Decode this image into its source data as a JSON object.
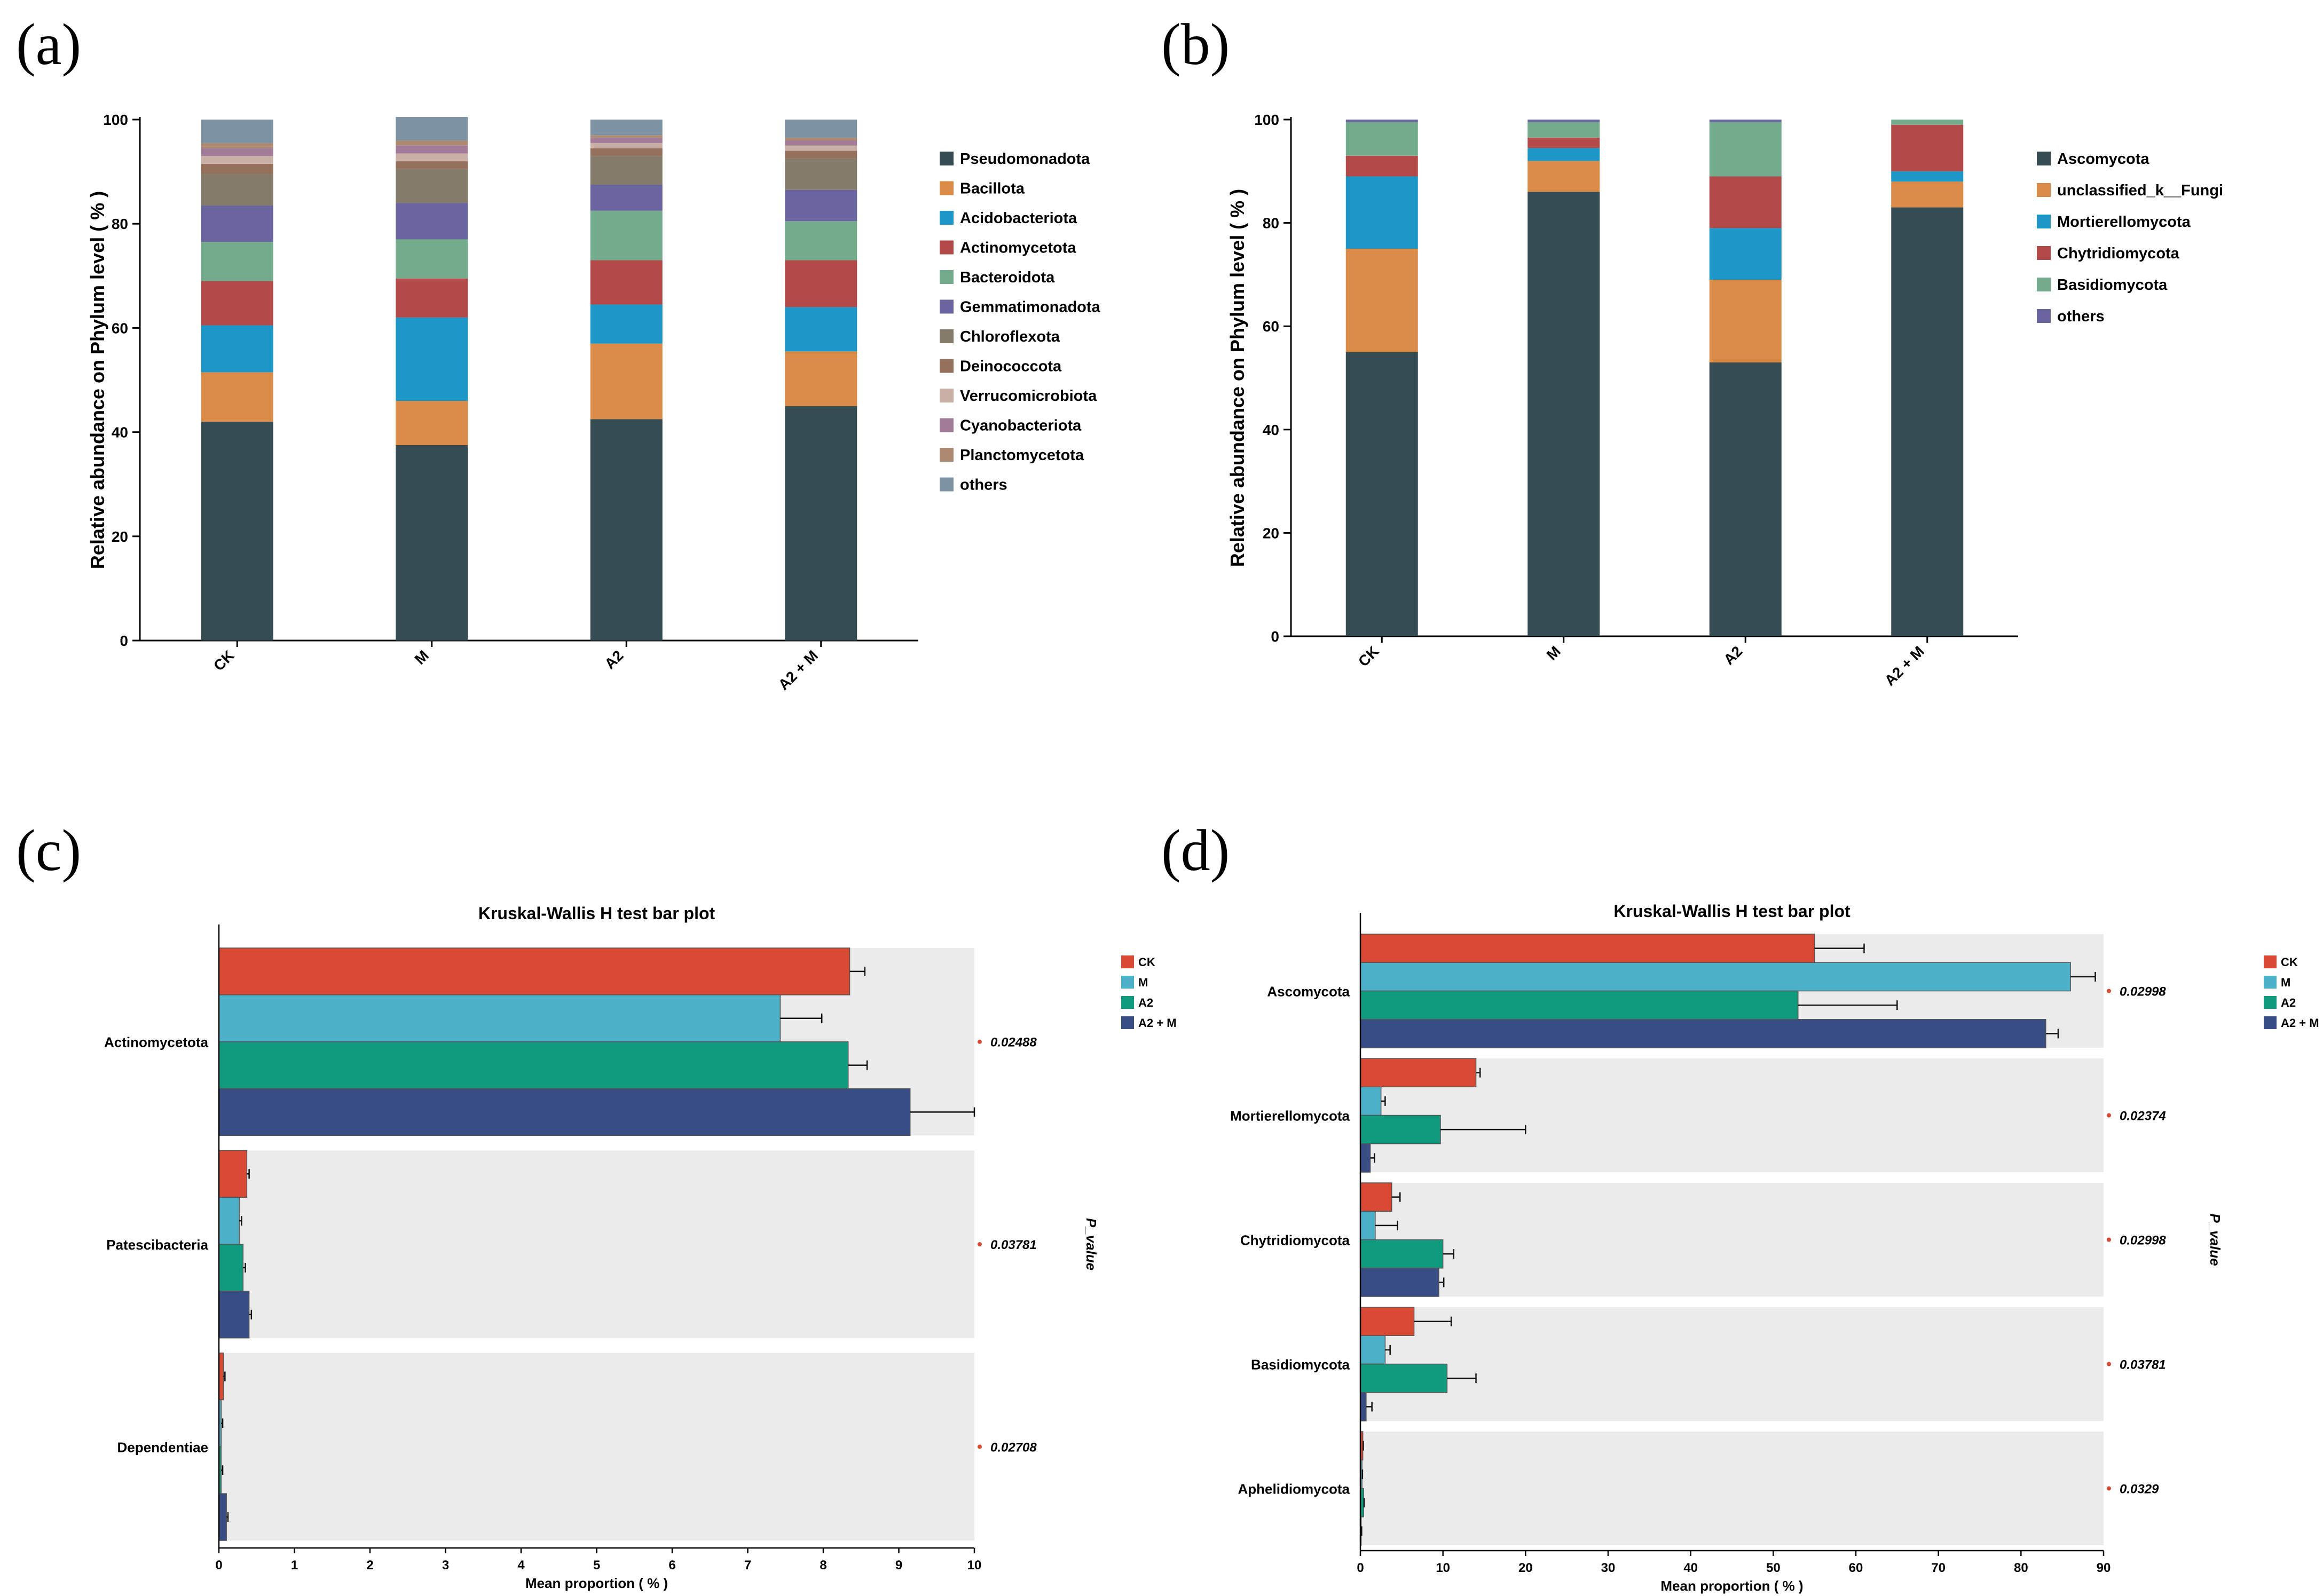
{
  "panel_labels": [
    "(a)",
    "(b)",
    "(c)",
    "(d)"
  ],
  "chart_data": [
    {
      "panel": "(a)",
      "type": "stacked-bar",
      "ylabel": "Relative abundance on Phylum level ( % )",
      "xlabel": "",
      "ylim": [
        0,
        100
      ],
      "yticks": [
        "0",
        "20",
        "40",
        "60",
        "80",
        "100"
      ],
      "categories": [
        "CK",
        "M",
        "A2",
        "A2 + M"
      ],
      "series": [
        {
          "name": "Pseudomonadota",
          "color": "#354c52",
          "values": [
            42,
            37.5,
            42.5,
            45
          ]
        },
        {
          "name": "Bacillota",
          "color": "#d98b47",
          "values": [
            9.5,
            8.5,
            14.5,
            10.5
          ]
        },
        {
          "name": "Acidobacteriota",
          "color": "#1d96c8",
          "values": [
            9,
            16,
            7.5,
            8.5
          ]
        },
        {
          "name": "Actinomycetota",
          "color": "#b34a4a",
          "values": [
            8.5,
            7.5,
            8.5,
            9
          ]
        },
        {
          "name": "Bacteroidota",
          "color": "#73ac8d",
          "values": [
            7.5,
            7.5,
            9.5,
            7.5
          ]
        },
        {
          "name": "Gemmatimonadota",
          "color": "#6a659e",
          "values": [
            7,
            7,
            5,
            6
          ]
        },
        {
          "name": "Chloroflexota",
          "color": "#857b6b",
          "values": [
            6,
            6.5,
            5.5,
            6
          ]
        },
        {
          "name": "Deinococcota",
          "color": "#94705d",
          "values": [
            2,
            1.5,
            1.5,
            1.5
          ]
        },
        {
          "name": "Verrucomicrobiota",
          "color": "#c9b0a6",
          "values": [
            1.5,
            1.5,
            1,
            1
          ]
        },
        {
          "name": "Cyanobacteriota",
          "color": "#a17b97",
          "values": [
            1.5,
            1.5,
            1,
            1
          ]
        },
        {
          "name": "Planctomycetota",
          "color": "#ac8a72",
          "values": [
            1,
            1,
            0.5,
            0.5
          ]
        },
        {
          "name": "others",
          "color": "#7d93a3",
          "values": [
            4.5,
            4.5,
            3,
            3.5
          ]
        }
      ]
    },
    {
      "panel": "(b)",
      "type": "stacked-bar",
      "ylabel": "Relative abundance on Phylum level ( % )",
      "xlabel": "",
      "ylim": [
        0,
        100
      ],
      "yticks": [
        "0",
        "20",
        "40",
        "60",
        "80",
        "100"
      ],
      "categories": [
        "CK",
        "M",
        "A2",
        "A2 + M"
      ],
      "series": [
        {
          "name": "Ascomycota",
          "color": "#354c52",
          "values": [
            55,
            86,
            53,
            83
          ]
        },
        {
          "name": "unclassified_k__Fungi",
          "color": "#d98b47",
          "values": [
            20,
            6,
            16,
            5
          ]
        },
        {
          "name": "Mortierellomycota",
          "color": "#1d96c8",
          "values": [
            14,
            2.5,
            10,
            2
          ]
        },
        {
          "name": "Chytridiomycota",
          "color": "#b34a4a",
          "values": [
            4,
            2,
            10,
            9
          ]
        },
        {
          "name": "Basidiomycota",
          "color": "#73ac8d",
          "values": [
            6.5,
            3,
            10.5,
            1
          ]
        },
        {
          "name": "others",
          "color": "#6a659e",
          "values": [
            0.5,
            0.5,
            0.5,
            0
          ]
        }
      ]
    },
    {
      "panel": "(c)",
      "type": "bar",
      "orientation": "horizontal",
      "title": "Kruskal-Wallis H test bar plot",
      "xlabel": "Mean proportion ( % )",
      "side_label": "P_value",
      "xlim": [
        0,
        10
      ],
      "xticks": [
        "0",
        "1",
        "2",
        "3",
        "4",
        "5",
        "6",
        "7",
        "8",
        "9",
        "10"
      ],
      "groups": [
        {
          "name": "CK",
          "color": "#d94a35"
        },
        {
          "name": "M",
          "color": "#4db0c9"
        },
        {
          "name": "A2",
          "color": "#109a7e"
        },
        {
          "name": "A2 + M",
          "color": "#384d84"
        }
      ],
      "taxa": [
        {
          "name": "Actinomycetota",
          "p_value": "0.02488",
          "values": [
            8.35,
            7.43,
            8.33,
            9.15
          ],
          "errors": [
            0.2,
            0.55,
            0.25,
            0.85
          ]
        },
        {
          "name": "Patescibacteria",
          "p_value": "0.03781",
          "values": [
            0.37,
            0.27,
            0.32,
            0.4
          ],
          "errors": [
            0.03,
            0.03,
            0.03,
            0.03
          ]
        },
        {
          "name": "Dependentiae",
          "p_value": "0.02708",
          "values": [
            0.06,
            0.03,
            0.03,
            0.1
          ],
          "errors": [
            0.02,
            0.02,
            0.02,
            0.02
          ]
        }
      ]
    },
    {
      "panel": "(d)",
      "type": "bar",
      "orientation": "horizontal",
      "title": "Kruskal-Wallis H test bar plot",
      "xlabel": "Mean proportion ( % )",
      "side_label": "P_value",
      "xlim": [
        0,
        90
      ],
      "xticks": [
        "0",
        "10",
        "20",
        "30",
        "40",
        "50",
        "60",
        "70",
        "80",
        "90"
      ],
      "groups": [
        {
          "name": "CK",
          "color": "#d94a35"
        },
        {
          "name": "M",
          "color": "#4db0c9"
        },
        {
          "name": "A2",
          "color": "#109a7e"
        },
        {
          "name": "A2 + M",
          "color": "#384d84"
        }
      ],
      "taxa": [
        {
          "name": "Ascomycota",
          "p_value": "0.02998",
          "values": [
            55,
            86,
            53,
            83
          ],
          "errors": [
            6,
            3,
            12,
            1.5
          ]
        },
        {
          "name": "Mortierellomycota",
          "p_value": "0.02374",
          "values": [
            14,
            2.5,
            9.7,
            1.2
          ],
          "errors": [
            0.5,
            0.5,
            10.3,
            0.5
          ]
        },
        {
          "name": "Chytridiomycota",
          "p_value": "0.02998",
          "values": [
            3.8,
            1.8,
            10,
            9.5
          ],
          "errors": [
            1,
            2.7,
            1.3,
            0.6
          ]
        },
        {
          "name": "Basidiomycota",
          "p_value": "0.03781",
          "values": [
            6.5,
            3,
            10.5,
            0.7
          ],
          "errors": [
            4.5,
            0.6,
            3.5,
            0.7
          ]
        },
        {
          "name": "Aphelidiomycota",
          "p_value": "0.0329",
          "values": [
            0.3,
            0.2,
            0.4,
            0.1
          ],
          "errors": [
            0.05,
            0.05,
            0.05,
            0.05
          ]
        }
      ]
    }
  ]
}
